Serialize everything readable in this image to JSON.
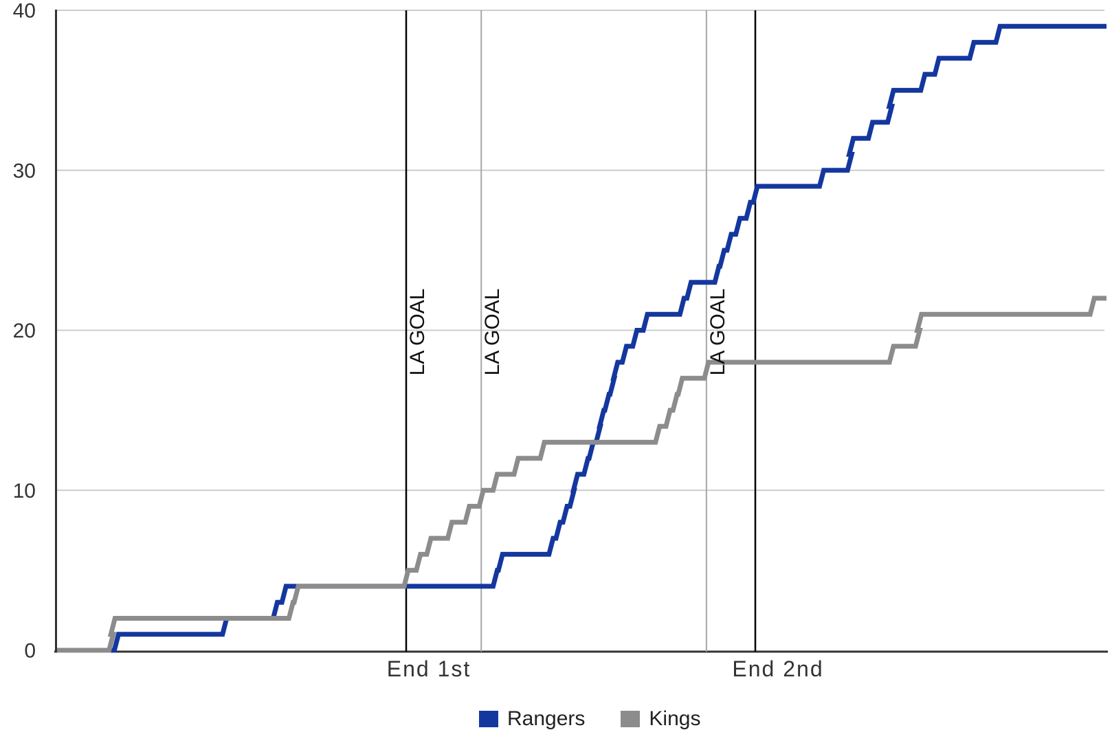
{
  "chart_data": {
    "type": "line",
    "subtype": "cumulative-step",
    "x_axis": {
      "range": [
        0,
        60
      ],
      "ticks": [
        {
          "label": "End 1st",
          "min": 20
        },
        {
          "label": "End 2nd",
          "min": 40
        }
      ]
    },
    "y_axis": {
      "range": [
        0,
        40
      ],
      "ticks": [
        0,
        10,
        20,
        30,
        40
      ]
    },
    "series": [
      {
        "name": "Rangers",
        "color": "#14379f",
        "start_value": 0,
        "final_value": 39,
        "events": [
          [
            3.4,
            1
          ],
          [
            9.6,
            2
          ],
          [
            12.5,
            3
          ],
          [
            13.0,
            4
          ],
          [
            25.1,
            5
          ],
          [
            25.4,
            6
          ],
          [
            28.3,
            7
          ],
          [
            28.7,
            8
          ],
          [
            29.1,
            9
          ],
          [
            29.5,
            10
          ],
          [
            29.7,
            11
          ],
          [
            30.3,
            12
          ],
          [
            30.6,
            13
          ],
          [
            31.0,
            14
          ],
          [
            31.2,
            15
          ],
          [
            31.5,
            16
          ],
          [
            31.8,
            17
          ],
          [
            32.0,
            18
          ],
          [
            32.5,
            19
          ],
          [
            33.1,
            20
          ],
          [
            33.7,
            21
          ],
          [
            35.8,
            22
          ],
          [
            36.2,
            23
          ],
          [
            37.8,
            24
          ],
          [
            38.1,
            25
          ],
          [
            38.5,
            26
          ],
          [
            39.0,
            27
          ],
          [
            39.6,
            28
          ],
          [
            40.0,
            29
          ],
          [
            43.8,
            30
          ],
          [
            45.4,
            31
          ],
          [
            45.5,
            32
          ],
          [
            46.6,
            33
          ],
          [
            47.7,
            34
          ],
          [
            47.8,
            35
          ],
          [
            49.6,
            36
          ],
          [
            50.4,
            37
          ],
          [
            52.4,
            38
          ],
          [
            53.9,
            39
          ]
        ]
      },
      {
        "name": "Kings",
        "color": "#8c8c8c",
        "start_value": 0,
        "final_value": 22,
        "events": [
          [
            3.1,
            1
          ],
          [
            3.2,
            2
          ],
          [
            13.4,
            3
          ],
          [
            13.7,
            4
          ],
          [
            20.0,
            5
          ],
          [
            20.7,
            6
          ],
          [
            21.3,
            7
          ],
          [
            22.5,
            8
          ],
          [
            23.5,
            9
          ],
          [
            24.3,
            10
          ],
          [
            25.1,
            11
          ],
          [
            26.3,
            12
          ],
          [
            27.8,
            13
          ],
          [
            34.4,
            14
          ],
          [
            35.0,
            15
          ],
          [
            35.4,
            16
          ],
          [
            35.7,
            17
          ],
          [
            37.2,
            18
          ],
          [
            47.8,
            19
          ],
          [
            49.3,
            20
          ],
          [
            49.4,
            21
          ],
          [
            59.3,
            22
          ]
        ]
      }
    ],
    "annotations": [
      {
        "label": "LA GOAL",
        "min": 20.0
      },
      {
        "label": "LA GOAL",
        "min": 24.3
      },
      {
        "label": "LA GOAL",
        "min": 37.2
      }
    ],
    "period_lines_min": [
      20,
      40
    ],
    "grid_on": true,
    "legend_position": "bottom",
    "colors": {
      "gridline": "#cccccc",
      "axis": "#333333",
      "period_line": "#000000",
      "goal_line": "#a6a6a6",
      "tick_text": "#333333",
      "annotation_text": "#111111"
    }
  },
  "legend": {
    "rangers_label": "Rangers",
    "kings_label": "Kings"
  }
}
